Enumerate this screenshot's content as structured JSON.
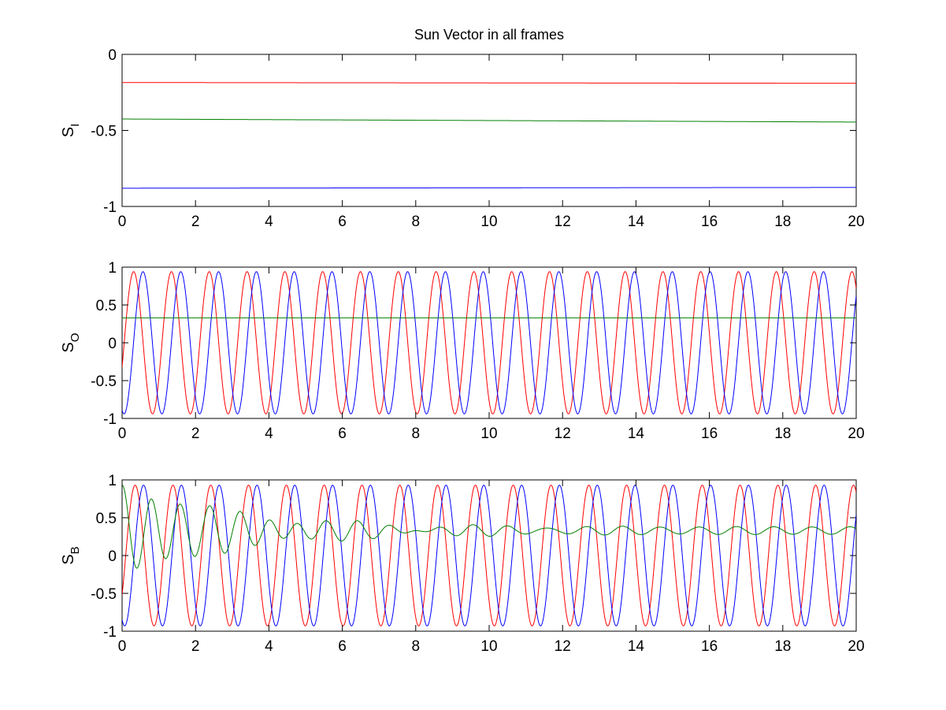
{
  "chart_data": [
    {
      "type": "line",
      "title": "Sun Vector in all frames",
      "ylabel": "S",
      "ylabel_subscript": "I",
      "xlim": [
        0,
        20
      ],
      "ylim": [
        -1,
        0
      ],
      "xticks": [
        "0",
        "2",
        "4",
        "6",
        "8",
        "10",
        "12",
        "14",
        "16",
        "18",
        "20"
      ],
      "yticks": [
        "-1",
        "-0.5",
        "0"
      ],
      "grid": false,
      "series": [
        {
          "color": "#ff0000",
          "model": "linear",
          "start": -0.185,
          "end": -0.19
        },
        {
          "color": "#008000",
          "model": "linear",
          "start": -0.425,
          "end": -0.445
        },
        {
          "color": "#0000ff",
          "model": "linear",
          "start": -0.88,
          "end": -0.875
        }
      ]
    },
    {
      "type": "line",
      "title": "",
      "ylabel": "S",
      "ylabel_subscript": "O",
      "xlim": [
        0,
        20
      ],
      "ylim": [
        -1,
        1
      ],
      "xticks": [
        "0",
        "2",
        "4",
        "6",
        "8",
        "10",
        "12",
        "14",
        "16",
        "18",
        "20"
      ],
      "yticks": [
        "-1",
        "-0.5",
        "0",
        "0.5",
        "1"
      ],
      "grid": false,
      "series": [
        {
          "color": "#ff0000",
          "model": "sine",
          "amplitude": 0.94,
          "period": 1.03,
          "phase": -0.35,
          "offset": 0
        },
        {
          "color": "#0000ff",
          "model": "sine",
          "amplitude": 0.94,
          "period": 1.03,
          "phase": -1.9,
          "offset": 0
        },
        {
          "color": "#008000",
          "model": "linear",
          "start": 0.33,
          "end": 0.33
        }
      ]
    },
    {
      "type": "line",
      "title": "",
      "ylabel": "S",
      "ylabel_subscript": "B",
      "xlim": [
        0,
        20
      ],
      "ylim": [
        -1,
        1
      ],
      "xticks": [
        "0",
        "2",
        "4",
        "6",
        "8",
        "10",
        "12",
        "14",
        "16",
        "18",
        "20"
      ],
      "yticks": [
        "-1",
        "-0.5",
        "0",
        "0.5",
        "1"
      ],
      "grid": false,
      "series": [
        {
          "color": "#ff0000",
          "model": "sine",
          "amplitude": 0.93,
          "period": 1.03,
          "phase": -0.6,
          "offset": 0
        },
        {
          "color": "#0000ff",
          "model": "sine",
          "amplitude": 0.93,
          "period": 1.03,
          "phase": -2.0,
          "offset": 0
        },
        {
          "color": "#008000",
          "model": "damped",
          "amplitude": 0.6,
          "period": 0.8,
          "decay": 3.2,
          "offset": 0.33,
          "ripple": 0.05,
          "ripple_period": 1.03
        }
      ]
    }
  ]
}
